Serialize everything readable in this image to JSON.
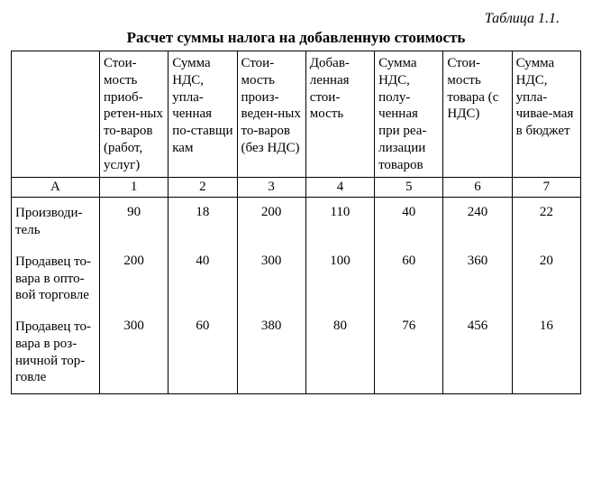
{
  "table_label": "Таблица 1.1.",
  "title": "Расчет суммы налога на добавленную стоимость",
  "headers": [
    "",
    "Стои-мость приоб-ретен-ных то-варов (работ, услуг)",
    "Сумма НДС, упла-ченная по-ставщи кам",
    "Стои-мость произ-веден-ных то-варов (без НДС)",
    "Добав-ленная стои-мость",
    "Сумма НДС, полу-ченная при реа-лизации товаров",
    "Стои-мость товара (с НДС)",
    "Сумма НДС, упла-чивае-мая в бюджет"
  ],
  "colnums": [
    "А",
    "1",
    "2",
    "3",
    "4",
    "5",
    "6",
    "7"
  ],
  "rows": [
    {
      "label": "Производи-тель",
      "values": [
        "90",
        "18",
        "200",
        "110",
        "40",
        "240",
        "22"
      ]
    },
    {
      "label": "Продавец то-вара в опто-вой торговле",
      "values": [
        "200",
        "40",
        "300",
        "100",
        "60",
        "360",
        "20"
      ]
    },
    {
      "label": "Продавец то-вара в роз-ничной тор-говле",
      "values": [
        "300",
        "60",
        "380",
        "80",
        "76",
        "456",
        "16"
      ]
    }
  ],
  "style": {
    "font_family": "Times New Roman",
    "title_fontsize": 17,
    "cell_fontsize": 15,
    "border_color": "#000000",
    "background_color": "#ffffff",
    "text_color": "#000000"
  }
}
